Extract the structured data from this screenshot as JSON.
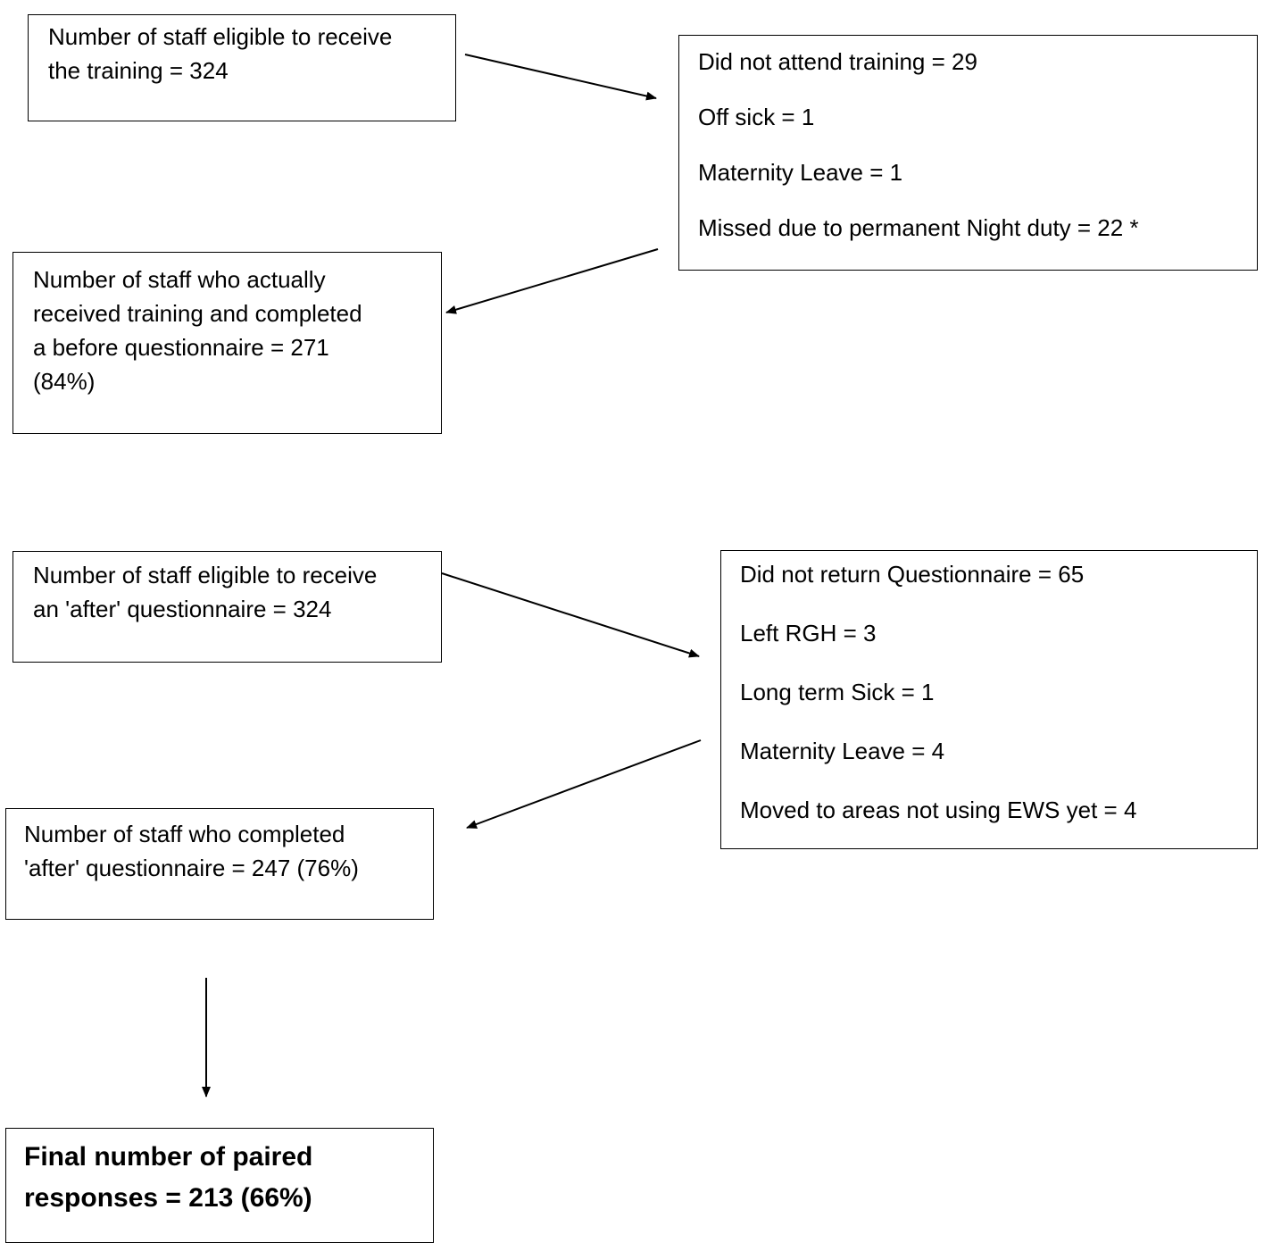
{
  "boxes": {
    "eligible_training": {
      "lines": [
        "Number of staff eligible to receive",
        "the training = 324"
      ]
    },
    "training_exclusions": {
      "lines": [
        "Did not attend training = 29",
        "Off sick = 1",
        "Maternity Leave = 1",
        "Missed due to permanent Night duty = 22 *"
      ]
    },
    "received_training": {
      "lines": [
        "Number of staff who actually",
        "received training and completed",
        "a before questionnaire = 271",
        "(84%)"
      ]
    },
    "eligible_after": {
      "lines": [
        "Number of staff eligible to receive",
        "an 'after' questionnaire = 324"
      ]
    },
    "after_exclusions": {
      "lines": [
        "Did not return Questionnaire = 65",
        "Left RGH = 3",
        "Long term Sick = 1",
        "Maternity Leave = 4",
        "Moved to areas not using EWS yet = 4"
      ]
    },
    "completed_after": {
      "lines": [
        "Number of staff who completed",
        "'after' questionnaire = 247 (76%)"
      ]
    },
    "final_paired": {
      "lines": [
        "Final number of paired",
        "responses = 213 (66%)"
      ]
    }
  },
  "colors": {
    "line": "#000000",
    "background": "#ffffff"
  }
}
